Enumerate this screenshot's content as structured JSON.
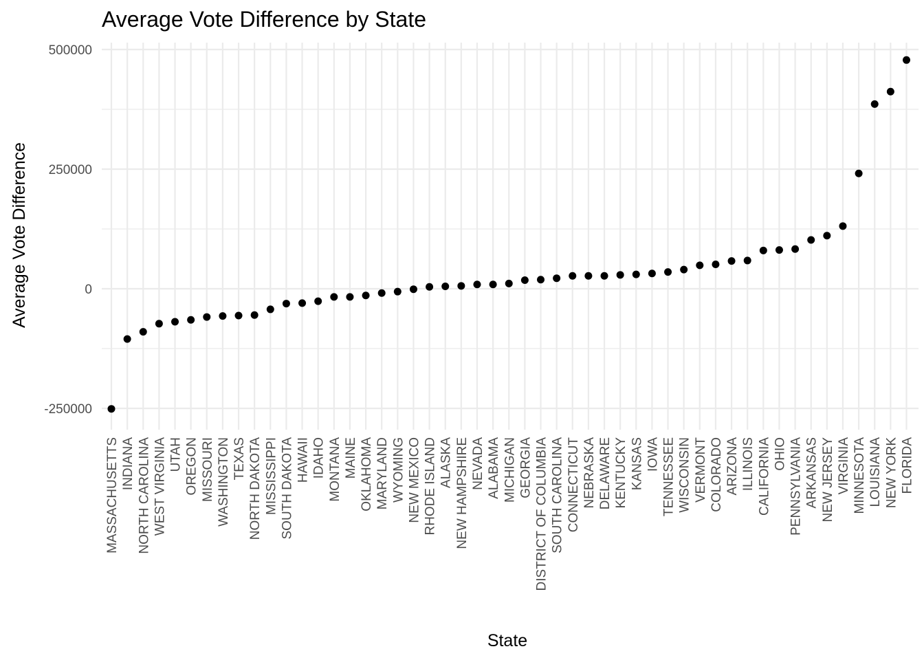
{
  "chart_data": {
    "type": "scatter",
    "title": "Average Vote Difference by State",
    "xlabel": "State",
    "ylabel": "Average Vote Difference",
    "y_ticks": [
      -250000,
      0,
      250000,
      500000
    ],
    "ylim": [
      -265000,
      500000
    ],
    "grid": true,
    "legend": "none",
    "point_color": "#000000",
    "grid_color": "#ebebeb",
    "categories": [
      "MASSACHUSETTS",
      "INDIANA",
      "NORTH CAROLINA",
      "WEST VIRGINIA",
      "UTAH",
      "OREGON",
      "MISSOURI",
      "WASHINGTON",
      "TEXAS",
      "NORTH DAKOTA",
      "MISSISSIPPI",
      "SOUTH DAKOTA",
      "HAWAII",
      "IDAHO",
      "MONTANA",
      "MAINE",
      "OKLAHOMA",
      "MARYLAND",
      "WYOMING",
      "NEW MEXICO",
      "RHODE ISLAND",
      "ALASKA",
      "NEW HAMPSHIRE",
      "NEVADA",
      "ALABAMA",
      "MICHIGAN",
      "GEORGIA",
      "DISTRICT OF COLUMBIA",
      "SOUTH CAROLINA",
      "CONNECTICUT",
      "NEBRASKA",
      "DELAWARE",
      "KENTUCKY",
      "KANSAS",
      "IOWA",
      "TENNESSEE",
      "WISCONSIN",
      "VERMONT",
      "COLORADO",
      "ARIZONA",
      "ILLINOIS",
      "CALIFORNIA",
      "OHIO",
      "PENNSYLVANIA",
      "ARKANSAS",
      "NEW JERSEY",
      "VIRGINIA",
      "MINNESOTA",
      "LOUISIANA",
      "NEW YORK",
      "FLORIDA"
    ],
    "values": [
      -251000,
      -105000,
      -90000,
      -73000,
      -69000,
      -65000,
      -59000,
      -57000,
      -56000,
      -55000,
      -43000,
      -31000,
      -30000,
      -26000,
      -17000,
      -17000,
      -14000,
      -9000,
      -6000,
      -1000,
      4000,
      5000,
      6000,
      9000,
      9000,
      11000,
      18000,
      19000,
      22000,
      27000,
      27000,
      27000,
      29000,
      30000,
      32000,
      35000,
      40000,
      49000,
      51000,
      58000,
      59000,
      80000,
      81000,
      83000,
      102000,
      111000,
      131000,
      241000,
      386000,
      412000,
      478000
    ]
  }
}
